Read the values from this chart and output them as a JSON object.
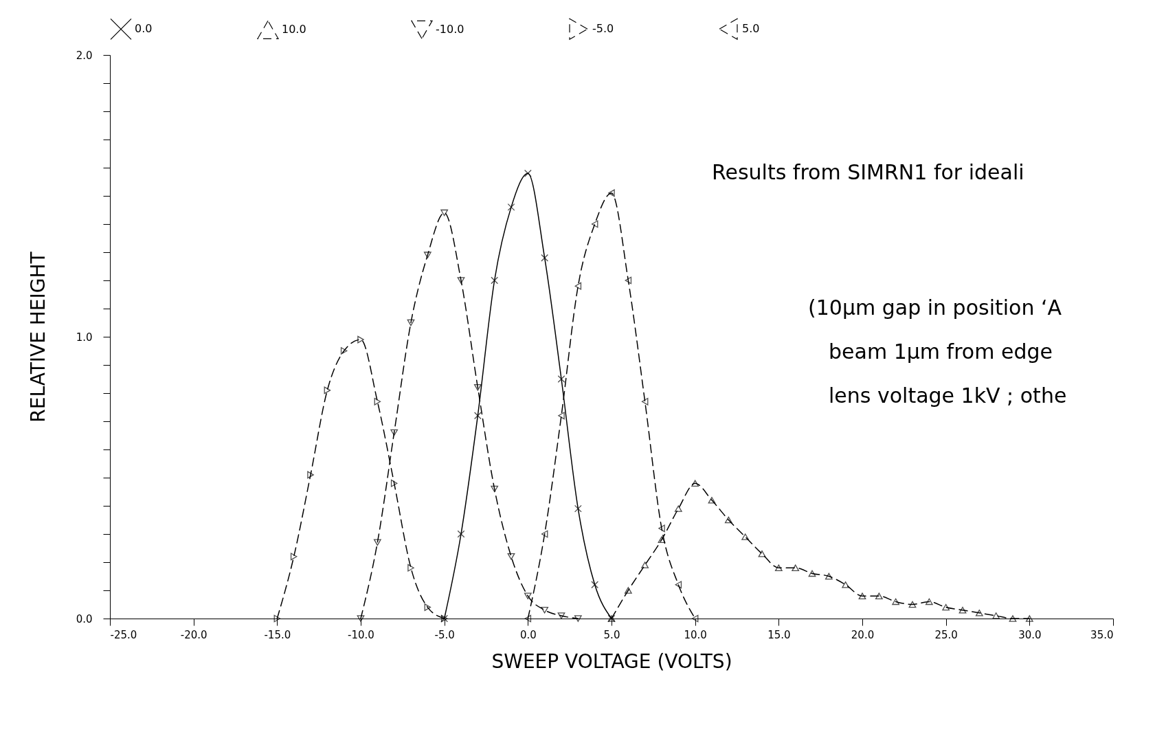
{
  "chart_data": {
    "type": "line",
    "xlabel": "SWEEP VOLTAGE (VOLTS)",
    "ylabel": "RELATIVE HEIGHT",
    "xlim": [
      -25,
      35
    ],
    "ylim": [
      0,
      2
    ],
    "xticks": [
      {
        "value": -25,
        "label": "-25.0"
      },
      {
        "value": -20,
        "label": "-20.0"
      },
      {
        "value": -15,
        "label": "-15.0"
      },
      {
        "value": -10,
        "label": "-10.0"
      },
      {
        "value": -5,
        "label": "-5.0"
      },
      {
        "value": 0,
        "label": "0.0"
      },
      {
        "value": 5,
        "label": "5.0"
      },
      {
        "value": 10,
        "label": "10.0"
      },
      {
        "value": 15,
        "label": "15.0"
      },
      {
        "value": 20,
        "label": "20.0"
      },
      {
        "value": 25,
        "label": "25.0"
      },
      {
        "value": 30,
        "label": "30.0"
      },
      {
        "value": 35,
        "label": "35.0"
      }
    ],
    "yticks": [
      {
        "value": 0,
        "label": "0.0"
      },
      {
        "value": 0.1,
        "label": null
      },
      {
        "value": 0.2,
        "label": null
      },
      {
        "value": 0.3,
        "label": null
      },
      {
        "value": 0.4,
        "label": null
      },
      {
        "value": 0.5,
        "label": null
      },
      {
        "value": 0.6,
        "label": null
      },
      {
        "value": 0.7,
        "label": null
      },
      {
        "value": 0.8,
        "label": null
      },
      {
        "value": 0.9,
        "label": null
      },
      {
        "value": 1,
        "label": "1.0"
      },
      {
        "value": 1.1,
        "label": null
      },
      {
        "value": 1.2,
        "label": null
      },
      {
        "value": 1.3,
        "label": null
      },
      {
        "value": 1.4,
        "label": null
      },
      {
        "value": 1.5,
        "label": null
      },
      {
        "value": 1.6,
        "label": null
      },
      {
        "value": 1.7,
        "label": null
      },
      {
        "value": 1.8,
        "label": null
      },
      {
        "value": 1.9,
        "label": null
      },
      {
        "value": 2,
        "label": "2.0"
      }
    ],
    "legend": "top",
    "annotations": [
      "Results from SIMRN1 for ideali",
      "(10μm gap in position ‘A",
      "beam 1μm from edge",
      "lens voltage 1kV ; othe"
    ],
    "series": [
      {
        "name": "0.0",
        "color": "#000000",
        "marker": "cross",
        "line_style": "solid",
        "x": [
          -5,
          -4,
          -3,
          -2,
          -1,
          0,
          1,
          2,
          3,
          4,
          5
        ],
        "values": [
          0,
          0.3,
          0.72,
          1.2,
          1.46,
          1.58,
          1.28,
          0.85,
          0.39,
          0.12,
          0
        ]
      },
      {
        "name": "10.0",
        "color": "#000000",
        "marker": "triangle-up",
        "line_style": "dashed",
        "x": [
          5,
          6,
          7,
          8,
          9,
          10,
          11,
          12,
          13,
          14,
          15,
          16,
          17,
          18,
          19,
          20,
          21,
          22,
          23,
          24,
          25,
          26,
          27,
          28,
          29,
          30
        ],
        "values": [
          0,
          0.1,
          0.19,
          0.28,
          0.39,
          0.48,
          0.42,
          0.35,
          0.29,
          0.23,
          0.18,
          0.18,
          0.16,
          0.15,
          0.12,
          0.08,
          0.08,
          0.06,
          0.05,
          0.06,
          0.04,
          0.03,
          0.02,
          0.01,
          0,
          0
        ]
      },
      {
        "name": "-10.0",
        "color": "#000000",
        "marker": "triangle-down",
        "line_style": "dashed",
        "x": [
          -10,
          -9,
          -8,
          -7,
          -6,
          -5,
          -4,
          -3,
          -2,
          -1,
          0,
          1,
          2,
          3
        ],
        "values": [
          0,
          0.27,
          0.66,
          1.05,
          1.29,
          1.44,
          1.2,
          0.82,
          0.46,
          0.22,
          0.08,
          0.03,
          0.01,
          0
        ]
      },
      {
        "name": "-5.0",
        "color": "#000000",
        "marker": "triangle-right",
        "line_style": "dashed",
        "x": [
          -15,
          -14,
          -13,
          -12,
          -11,
          -10,
          -9,
          -8,
          -7,
          -6,
          -5
        ],
        "values": [
          0,
          0.22,
          0.51,
          0.81,
          0.95,
          0.99,
          0.77,
          0.48,
          0.18,
          0.04,
          0
        ]
      },
      {
        "name": "5.0",
        "color": "#000000",
        "marker": "triangle-left",
        "line_style": "dashed",
        "x": [
          0,
          1,
          2,
          3,
          4,
          5,
          6,
          7,
          8,
          9,
          10
        ],
        "values": [
          0,
          0.3,
          0.72,
          1.18,
          1.4,
          1.51,
          1.2,
          0.77,
          0.32,
          0.12,
          0
        ]
      }
    ]
  }
}
